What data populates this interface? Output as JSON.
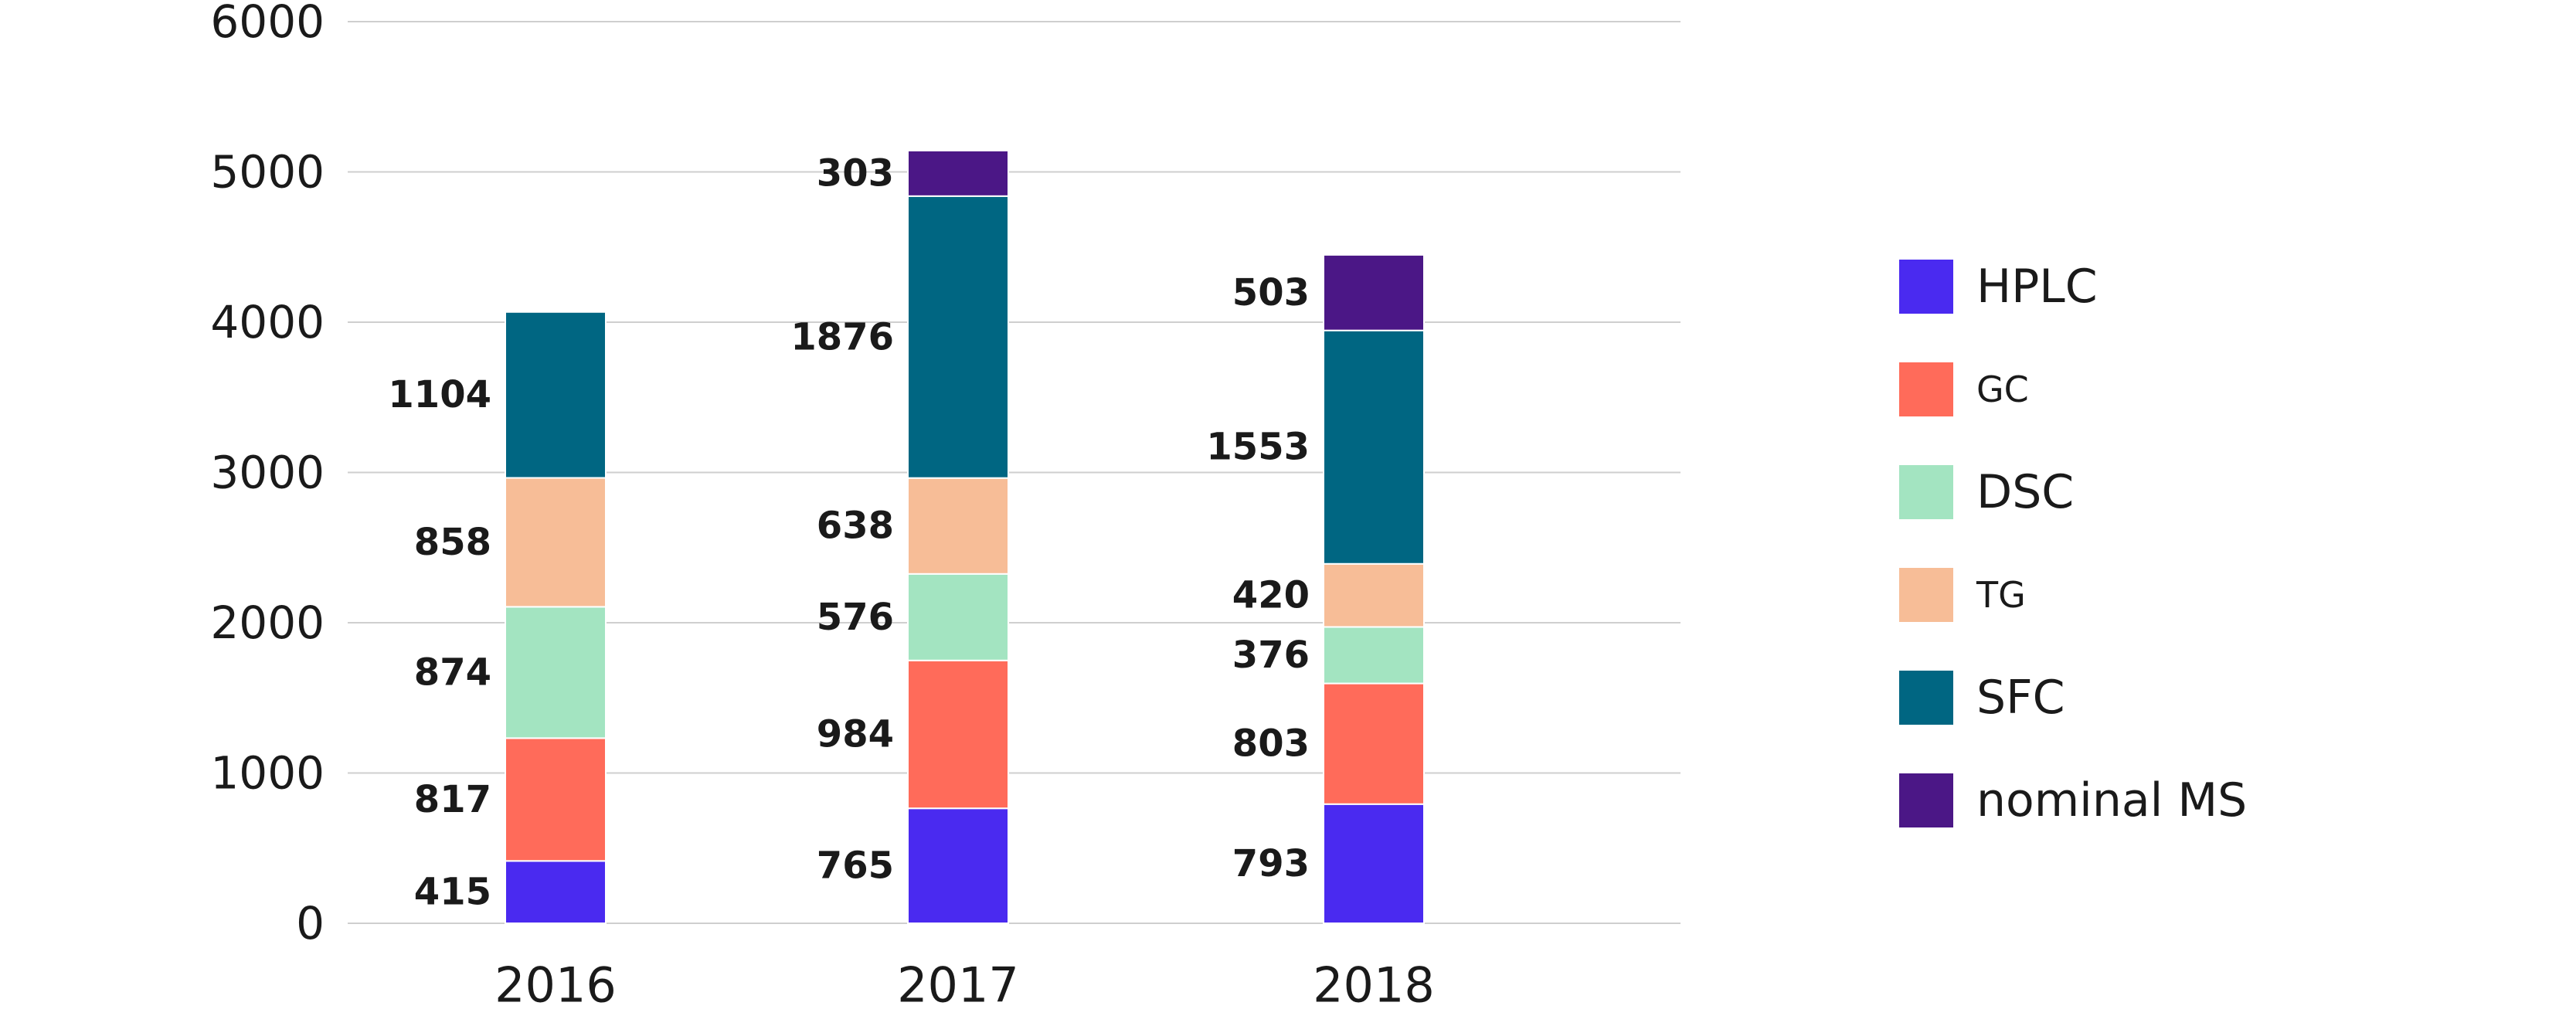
{
  "chart_data": {
    "type": "bar",
    "stacked": true,
    "categories": [
      "2016",
      "2017",
      "2018"
    ],
    "ylim": [
      0,
      6000
    ],
    "yticks": [
      "0",
      "1000",
      "2000",
      "3000",
      "4000",
      "5000",
      "6000"
    ],
    "grid": true,
    "legend_position": "right",
    "series": [
      {
        "name": "HPLC",
        "color": "#4a2af0",
        "values": [
          415,
          765,
          793
        ]
      },
      {
        "name": "GC",
        "color": "#ff6b5a",
        "values": [
          817,
          984,
          803
        ]
      },
      {
        "name": "DSC",
        "color": "#a3e4c1",
        "values": [
          874,
          576,
          376
        ]
      },
      {
        "name": "TG",
        "color": "#f7bd97",
        "values": [
          858,
          638,
          420
        ]
      },
      {
        "name": "SFC",
        "color": "#006682",
        "values": [
          1104,
          1876,
          1553
        ]
      },
      {
        "name": "nominal MS",
        "color": "#4b1786",
        "values": [
          null,
          303,
          503
        ]
      }
    ]
  }
}
